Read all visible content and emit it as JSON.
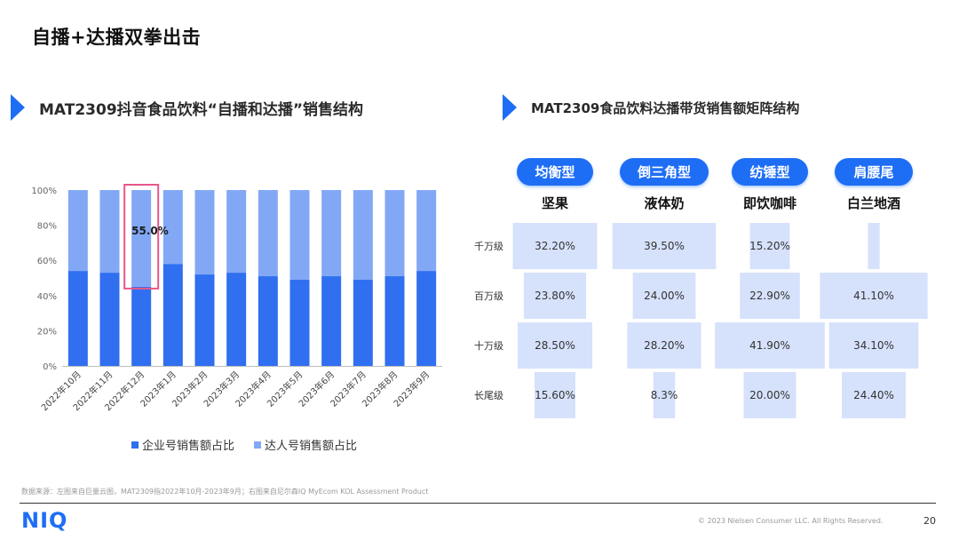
{
  "page": {
    "title": "自播+达播双拳出击",
    "left_heading": "MAT2309抖音食品饮料“自播和达播”销售结构",
    "right_heading": "MAT2309食品饮料达播带货销售额矩阵结构",
    "source": "数据来源：左图来自巨量云图，MAT2309指2022年10月-2023年9月；右图来自尼尔森IQ MyEcom KOL Assessment Product",
    "copyright": "© 2023 Nielsen Consumer LLC. All Rights Reserved.",
    "page_number": "20",
    "logo": "NIQ"
  },
  "colors": {
    "accent": "#1e6ef5",
    "enterprise": "#2f6ff0",
    "talent": "#82a8f5",
    "highlight": "#e8578a",
    "cell": "#d6e1fb"
  },
  "chart_data": [
    {
      "type": "bar",
      "stacked": true,
      "categories": [
        "2022年10月",
        "2022年11月",
        "2022年12月",
        "2023年1月",
        "2023年2月",
        "2023年3月",
        "2023年4月",
        "2023年5月",
        "2023年6月",
        "2023年7月",
        "2023年8月",
        "2023年9月"
      ],
      "series": [
        {
          "name": "企业号销售额占比",
          "values": [
            54,
            53,
            45,
            58,
            52,
            53,
            51,
            49,
            51,
            49,
            51,
            54
          ]
        },
        {
          "name": "达人号销售额占比",
          "values": [
            46,
            47,
            55,
            42,
            48,
            47,
            49,
            51,
            49,
            51,
            49,
            46
          ]
        }
      ],
      "yticks": [
        "0%",
        "20%",
        "40%",
        "60%",
        "80%",
        "100%"
      ],
      "ylim": [
        0,
        100
      ],
      "annotation": {
        "category": "2022年12月",
        "label": "55.0%"
      },
      "legend_position": "bottom"
    },
    {
      "type": "table",
      "title": "MAT2309食品饮料达播带货销售额矩阵结构",
      "types": [
        "均衡型",
        "倒三角型",
        "纺锤型",
        "肩腰尾"
      ],
      "products": [
        "坚果",
        "液体奶",
        "即饮咖啡",
        "白兰地酒"
      ],
      "tiers": [
        "千万级",
        "百万级",
        "十万级",
        "长尾级"
      ],
      "values": [
        [
          32.2,
          39.5,
          15.2,
          4.5
        ],
        [
          23.8,
          24.0,
          22.9,
          41.1
        ],
        [
          28.5,
          28.2,
          41.9,
          34.1
        ],
        [
          15.6,
          8.3,
          20.0,
          24.4
        ]
      ],
      "labels": [
        [
          "32.20%",
          "39.50%",
          "15.20%",
          ""
        ],
        [
          "23.80%",
          "24.00%",
          "22.90%",
          "41.10%"
        ],
        [
          "28.50%",
          "28.20%",
          "41.90%",
          "34.10%"
        ],
        [
          "15.60%",
          "8.3%",
          "20.00%",
          "24.40%"
        ]
      ]
    }
  ]
}
